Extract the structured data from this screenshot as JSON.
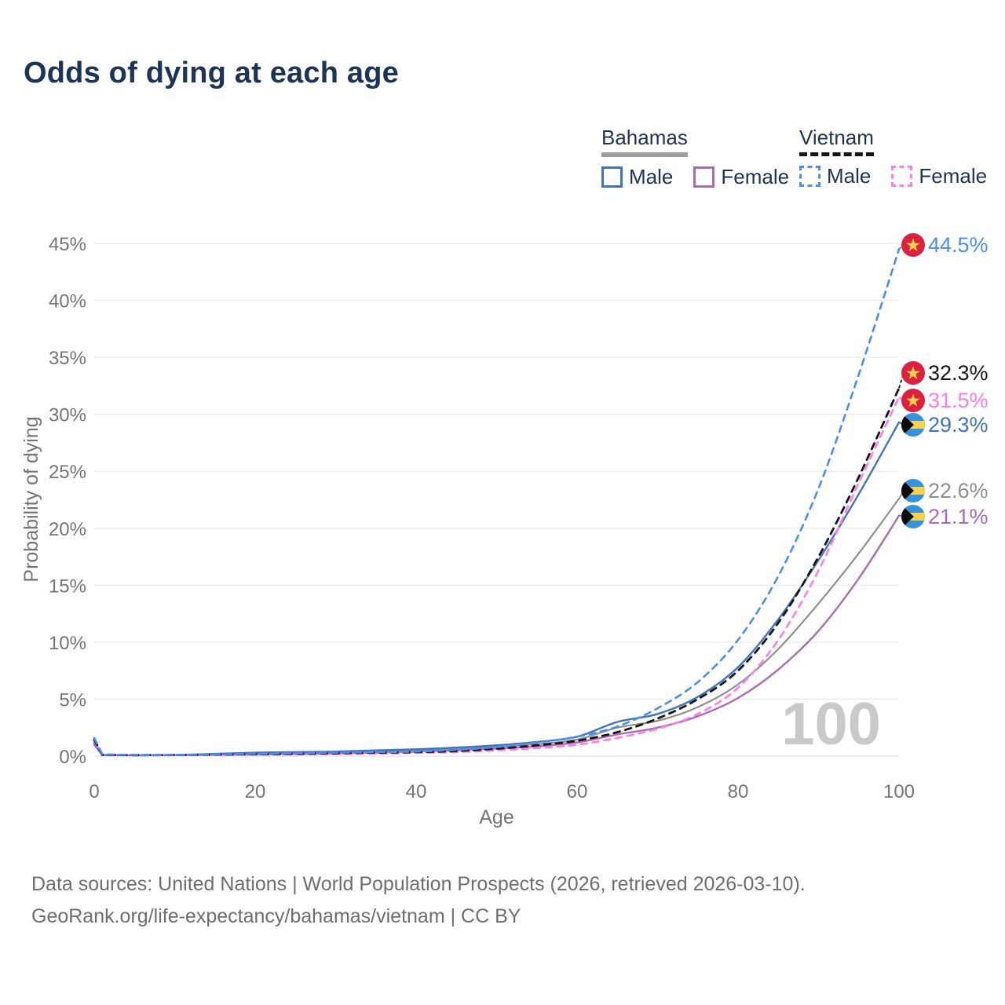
{
  "title": "Odds of dying at each age",
  "legend": {
    "groups": [
      {
        "name": "Bahamas",
        "underline_style": "solid",
        "underline_color": "#9e9e9e",
        "items": [
          {
            "label": "Male",
            "color": "#4274b9",
            "dash": false
          },
          {
            "label": "Female",
            "color": "#a76db6",
            "dash": false
          }
        ]
      },
      {
        "name": "Vietnam",
        "underline_style": "dashed",
        "underline_color": "#161616",
        "items": [
          {
            "label": "Male",
            "color": "#4b8ef1",
            "dash": true
          },
          {
            "label": "Female",
            "color": "#ff7bee",
            "dash": true
          }
        ]
      }
    ]
  },
  "chart_data": {
    "type": "line",
    "title": "Odds of dying at each age",
    "xlabel": "Age",
    "ylabel": "Probability of dying",
    "xlim": [
      0,
      100
    ],
    "ylim": [
      0,
      45
    ],
    "x_ticks": [
      0,
      20,
      40,
      60,
      80,
      100
    ],
    "y_ticks": [
      {
        "value": 0,
        "label": "0%"
      },
      {
        "value": 5,
        "label": "5%"
      },
      {
        "value": 10,
        "label": "10%"
      },
      {
        "value": 15,
        "label": "15%"
      },
      {
        "value": 20,
        "label": "20%"
      },
      {
        "value": 25,
        "label": "25%"
      },
      {
        "value": 30,
        "label": "30%"
      },
      {
        "value": 35,
        "label": "35%"
      },
      {
        "value": 40,
        "label": "40%"
      },
      {
        "value": 45,
        "label": "45%"
      }
    ],
    "grid": true,
    "watermark": "100",
    "ages": [
      0,
      1,
      5,
      10,
      15,
      20,
      25,
      30,
      35,
      40,
      45,
      50,
      55,
      60,
      65,
      70,
      75,
      80,
      85,
      90,
      95,
      100
    ],
    "series": [
      {
        "id": "bs-all",
        "name": "Bahamas",
        "sex": "Both",
        "color": "#8f8f8f",
        "dash": false,
        "width": 2.2,
        "flag": "bahamas",
        "end_label": "22.6%",
        "values": [
          1.1,
          0.09,
          0.07,
          0.09,
          0.15,
          0.22,
          0.27,
          0.32,
          0.4,
          0.5,
          0.62,
          0.8,
          1.05,
          1.45,
          2.5,
          3.1,
          4.3,
          6.3,
          9.4,
          13.4,
          17.8,
          22.6
        ]
      },
      {
        "id": "bs-female",
        "name": "Bahamas Female",
        "sex": "Female",
        "color": "#a76db6",
        "dash": false,
        "width": 2.4,
        "flag": "bahamas",
        "end_label": "21.1%",
        "values": [
          1.0,
          0.08,
          0.06,
          0.08,
          0.11,
          0.14,
          0.18,
          0.24,
          0.3,
          0.4,
          0.5,
          0.65,
          0.85,
          1.2,
          1.9,
          2.5,
          3.5,
          5.1,
          7.6,
          11.0,
          15.6,
          21.1
        ]
      },
      {
        "id": "bs-male",
        "name": "Bahamas Male",
        "sex": "Male",
        "color": "#4274b9",
        "dash": false,
        "width": 2.4,
        "flag": "bahamas",
        "end_label": "29.3%",
        "values": [
          1.2,
          0.1,
          0.08,
          0.1,
          0.2,
          0.3,
          0.35,
          0.4,
          0.5,
          0.6,
          0.75,
          0.95,
          1.25,
          1.7,
          3.0,
          3.7,
          5.2,
          7.8,
          12.0,
          17.2,
          23.0,
          29.3
        ]
      },
      {
        "id": "vn-female",
        "name": "Vietnam Female",
        "sex": "Female",
        "color": "#ff7bee",
        "dash": true,
        "width": 2.6,
        "flag": "vietnam",
        "end_label": "31.5%",
        "values": [
          1.3,
          0.1,
          0.08,
          0.08,
          0.1,
          0.12,
          0.15,
          0.18,
          0.22,
          0.28,
          0.35,
          0.5,
          0.7,
          1.0,
          1.6,
          2.4,
          3.7,
          6.0,
          10.2,
          16.3,
          24.0,
          31.5
        ]
      },
      {
        "id": "vn-all",
        "name": "Vietnam",
        "sex": "Both",
        "color": "#161616",
        "dash": true,
        "width": 2.8,
        "flag": "vietnam",
        "end_label": "32.3%",
        "values": [
          1.45,
          0.12,
          0.09,
          0.1,
          0.13,
          0.17,
          0.2,
          0.25,
          0.3,
          0.35,
          0.45,
          0.65,
          0.95,
          1.35,
          2.1,
          3.3,
          5.0,
          7.5,
          11.7,
          17.5,
          24.5,
          32.3
        ]
      },
      {
        "id": "vn-male",
        "name": "Vietnam Male",
        "sex": "Male",
        "color": "#4b8ef1",
        "dash": true,
        "width": 2.6,
        "flag": "vietnam",
        "end_label": "44.5%",
        "values": [
          1.6,
          0.15,
          0.1,
          0.1,
          0.15,
          0.2,
          0.25,
          0.3,
          0.35,
          0.4,
          0.55,
          0.8,
          1.2,
          1.7,
          2.6,
          4.2,
          6.5,
          10.2,
          15.8,
          23.5,
          33.5,
          44.5
        ]
      }
    ],
    "legend_position": "top-right"
  },
  "colors": {
    "grid": "#ebebeb",
    "zero_line": "#e2e2e2",
    "tick_text": "#757575",
    "axis_title": "#757575",
    "watermark": "#c9c9c9",
    "vietnam_flag_red": "#dc2040",
    "vietnam_flag_star": "#ffd24a",
    "bahamas_flag_blue": "#3792dc",
    "bahamas_flag_gold": "#f7d24c",
    "bahamas_flag_black": "#0d0d0d"
  },
  "footer": {
    "line1": "Data sources: United Nations | World Population Prospects (2026, retrieved 2026-03-10).",
    "line2": "GeoRank.org/life-expectancy/bahamas/vietnam | CC BY"
  }
}
